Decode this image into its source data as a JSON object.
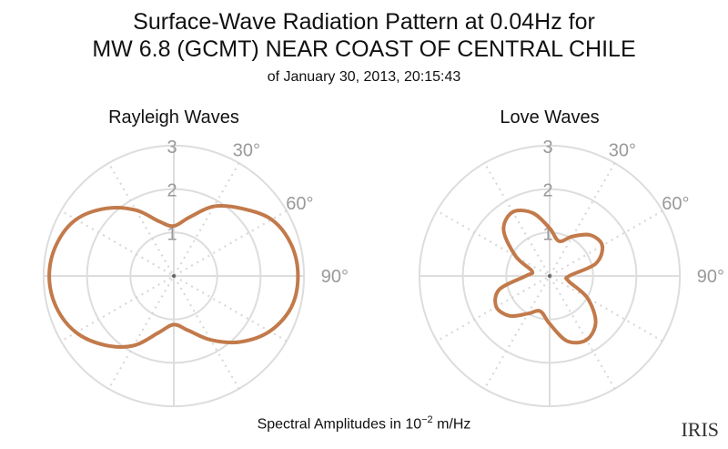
{
  "chart_data": {
    "type": "polar-line",
    "title": "Surface-Wave Radiation Pattern at 0.04Hz for",
    "title_line2": "MW 6.8 (GCMT) NEAR COAST OF CENTRAL CHILE",
    "subtitle": "of January 30, 2013, 20:15:43",
    "xlabel_prefix": "Spectral Amplitudes in 10",
    "xlabel_exp": "−2",
    "xlabel_unit": " m/Hz",
    "logo": "IRIS",
    "color": "#c27a4b",
    "rlim": [
      0,
      3
    ],
    "r_ticks": [
      "1",
      "2",
      "3"
    ],
    "angle_ticks": [
      "30°",
      "60°",
      "90°"
    ],
    "angle_convention": "0° north, clockwise",
    "panels": [
      {
        "name": "Rayleigh Waves",
        "azimuth_deg": [
          0,
          15,
          30,
          45,
          60,
          75,
          90,
          105,
          120,
          135,
          150,
          165,
          180,
          195,
          210,
          225,
          240,
          255,
          270,
          285,
          300,
          315,
          330,
          345
        ],
        "amplitude": [
          1.15,
          1.4,
          1.85,
          2.2,
          2.6,
          2.8,
          2.86,
          2.8,
          2.55,
          2.15,
          1.7,
          1.3,
          1.12,
          1.35,
          1.85,
          2.25,
          2.6,
          2.8,
          2.87,
          2.8,
          2.6,
          2.2,
          1.75,
          1.3
        ]
      },
      {
        "name": "Love Waves",
        "azimuth_deg": [
          0,
          15,
          30,
          45,
          60,
          75,
          90,
          105,
          120,
          135,
          150,
          165,
          180,
          195,
          210,
          225,
          240,
          255,
          270,
          285,
          300,
          315,
          330,
          345
        ],
        "amplitude": [
          1.1,
          0.83,
          1.05,
          1.33,
          1.4,
          1.1,
          0.45,
          0.45,
          1.0,
          1.5,
          1.7,
          1.55,
          1.1,
          0.84,
          1.0,
          1.3,
          1.42,
          1.2,
          0.55,
          0.42,
          0.9,
          1.5,
          1.7,
          1.5
        ]
      }
    ]
  }
}
